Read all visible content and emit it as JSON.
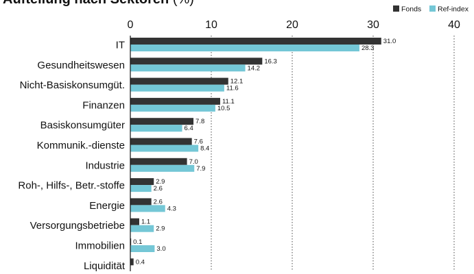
{
  "title": "Aufteilung nach Sektoren",
  "title_unit": "(%)",
  "colors": {
    "fonds": "#333333",
    "ref": "#74c7d6",
    "grid": "#444444",
    "axis": "#111111"
  },
  "chart_data": {
    "type": "bar",
    "orientation": "horizontal",
    "title": "Aufteilung nach Sektoren (%)",
    "categories": [
      "IT",
      "Gesundheitswesen",
      "Nicht-Basiskonsumgüt.",
      "Finanzen",
      "Basiskonsumgüter",
      "Kommunik.-dienste",
      "Industrie",
      "Roh-, Hilfs-, Betr.-stoffe",
      "Energie",
      "Versorgungsbetriebe",
      "Immobilien",
      "Liquidität"
    ],
    "series": [
      {
        "name": "Fonds",
        "values": [
          31.0,
          16.3,
          12.1,
          11.1,
          7.8,
          7.6,
          7.0,
          2.9,
          2.6,
          1.1,
          0.1,
          0.4
        ],
        "labels": [
          "31.0",
          "16.3",
          "12.1",
          "11.1",
          "7.8",
          "7.6",
          "7.0",
          "2.9",
          "2.6",
          "1.1",
          "0.1",
          "0.4"
        ]
      },
      {
        "name": "Ref-index",
        "values": [
          28.3,
          14.2,
          11.6,
          10.5,
          6.4,
          8.4,
          7.9,
          2.6,
          4.3,
          2.9,
          3.0,
          null
        ],
        "labels": [
          "28.3",
          "14.2",
          "11.6",
          "10.5",
          "6.4",
          "8.4",
          "7.9",
          "2.6",
          "4.3",
          "2.9",
          "3.0",
          ""
        ]
      }
    ],
    "xlim": [
      0,
      40
    ],
    "xticks": [
      0,
      10,
      20,
      30,
      40
    ],
    "xtick_labels": [
      "0",
      "10",
      "20",
      "30",
      "40"
    ],
    "grid": "vertical dotted",
    "legend_position": "top-right"
  }
}
